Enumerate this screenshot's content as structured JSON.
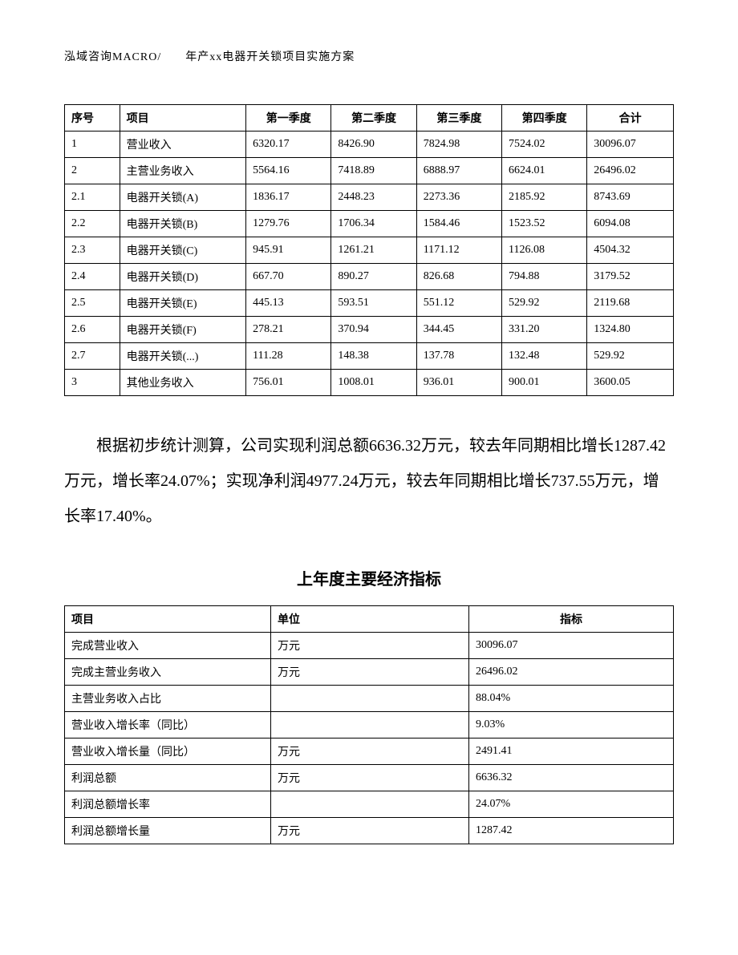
{
  "header": "泓域咨询MACRO/　　年产xx电器开关锁项目实施方案",
  "table1": {
    "columns": [
      "序号",
      "项目",
      "第一季度",
      "第二季度",
      "第三季度",
      "第四季度",
      "合计"
    ],
    "rows": [
      [
        "1",
        "营业收入",
        "6320.17",
        "8426.90",
        "7824.98",
        "7524.02",
        "30096.07"
      ],
      [
        "2",
        "主营业务收入",
        "5564.16",
        "7418.89",
        "6888.97",
        "6624.01",
        "26496.02"
      ],
      [
        "2.1",
        "电器开关锁(A)",
        "1836.17",
        "2448.23",
        "2273.36",
        "2185.92",
        "8743.69"
      ],
      [
        "2.2",
        "电器开关锁(B)",
        "1279.76",
        "1706.34",
        "1584.46",
        "1523.52",
        "6094.08"
      ],
      [
        "2.3",
        "电器开关锁(C)",
        "945.91",
        "1261.21",
        "1171.12",
        "1126.08",
        "4504.32"
      ],
      [
        "2.4",
        "电器开关锁(D)",
        "667.70",
        "890.27",
        "826.68",
        "794.88",
        "3179.52"
      ],
      [
        "2.5",
        "电器开关锁(E)",
        "445.13",
        "593.51",
        "551.12",
        "529.92",
        "2119.68"
      ],
      [
        "2.6",
        "电器开关锁(F)",
        "278.21",
        "370.94",
        "344.45",
        "331.20",
        "1324.80"
      ],
      [
        "2.7",
        "电器开关锁(...)",
        "111.28",
        "148.38",
        "137.78",
        "132.48",
        "529.92"
      ],
      [
        "3",
        "其他业务收入",
        "756.01",
        "1008.01",
        "936.01",
        "900.01",
        "3600.05"
      ]
    ]
  },
  "paragraph": "根据初步统计测算，公司实现利润总额6636.32万元，较去年同期相比增长1287.42万元，增长率24.07%；实现净利润4977.24万元，较去年同期相比增长737.55万元，增长率17.40%。",
  "table2_title": "上年度主要经济指标",
  "table2": {
    "columns": [
      "项目",
      "单位",
      "指标"
    ],
    "rows": [
      [
        "完成营业收入",
        "万元",
        "30096.07"
      ],
      [
        "完成主营业务收入",
        "万元",
        "26496.02"
      ],
      [
        "主营业务收入占比",
        "",
        "88.04%"
      ],
      [
        "营业收入增长率（同比）",
        "",
        "9.03%"
      ],
      [
        "营业收入增长量（同比）",
        "万元",
        "2491.41"
      ],
      [
        "利润总额",
        "万元",
        "6636.32"
      ],
      [
        "利润总额增长率",
        "",
        "24.07%"
      ],
      [
        "利润总额增长量",
        "万元",
        "1287.42"
      ]
    ]
  }
}
